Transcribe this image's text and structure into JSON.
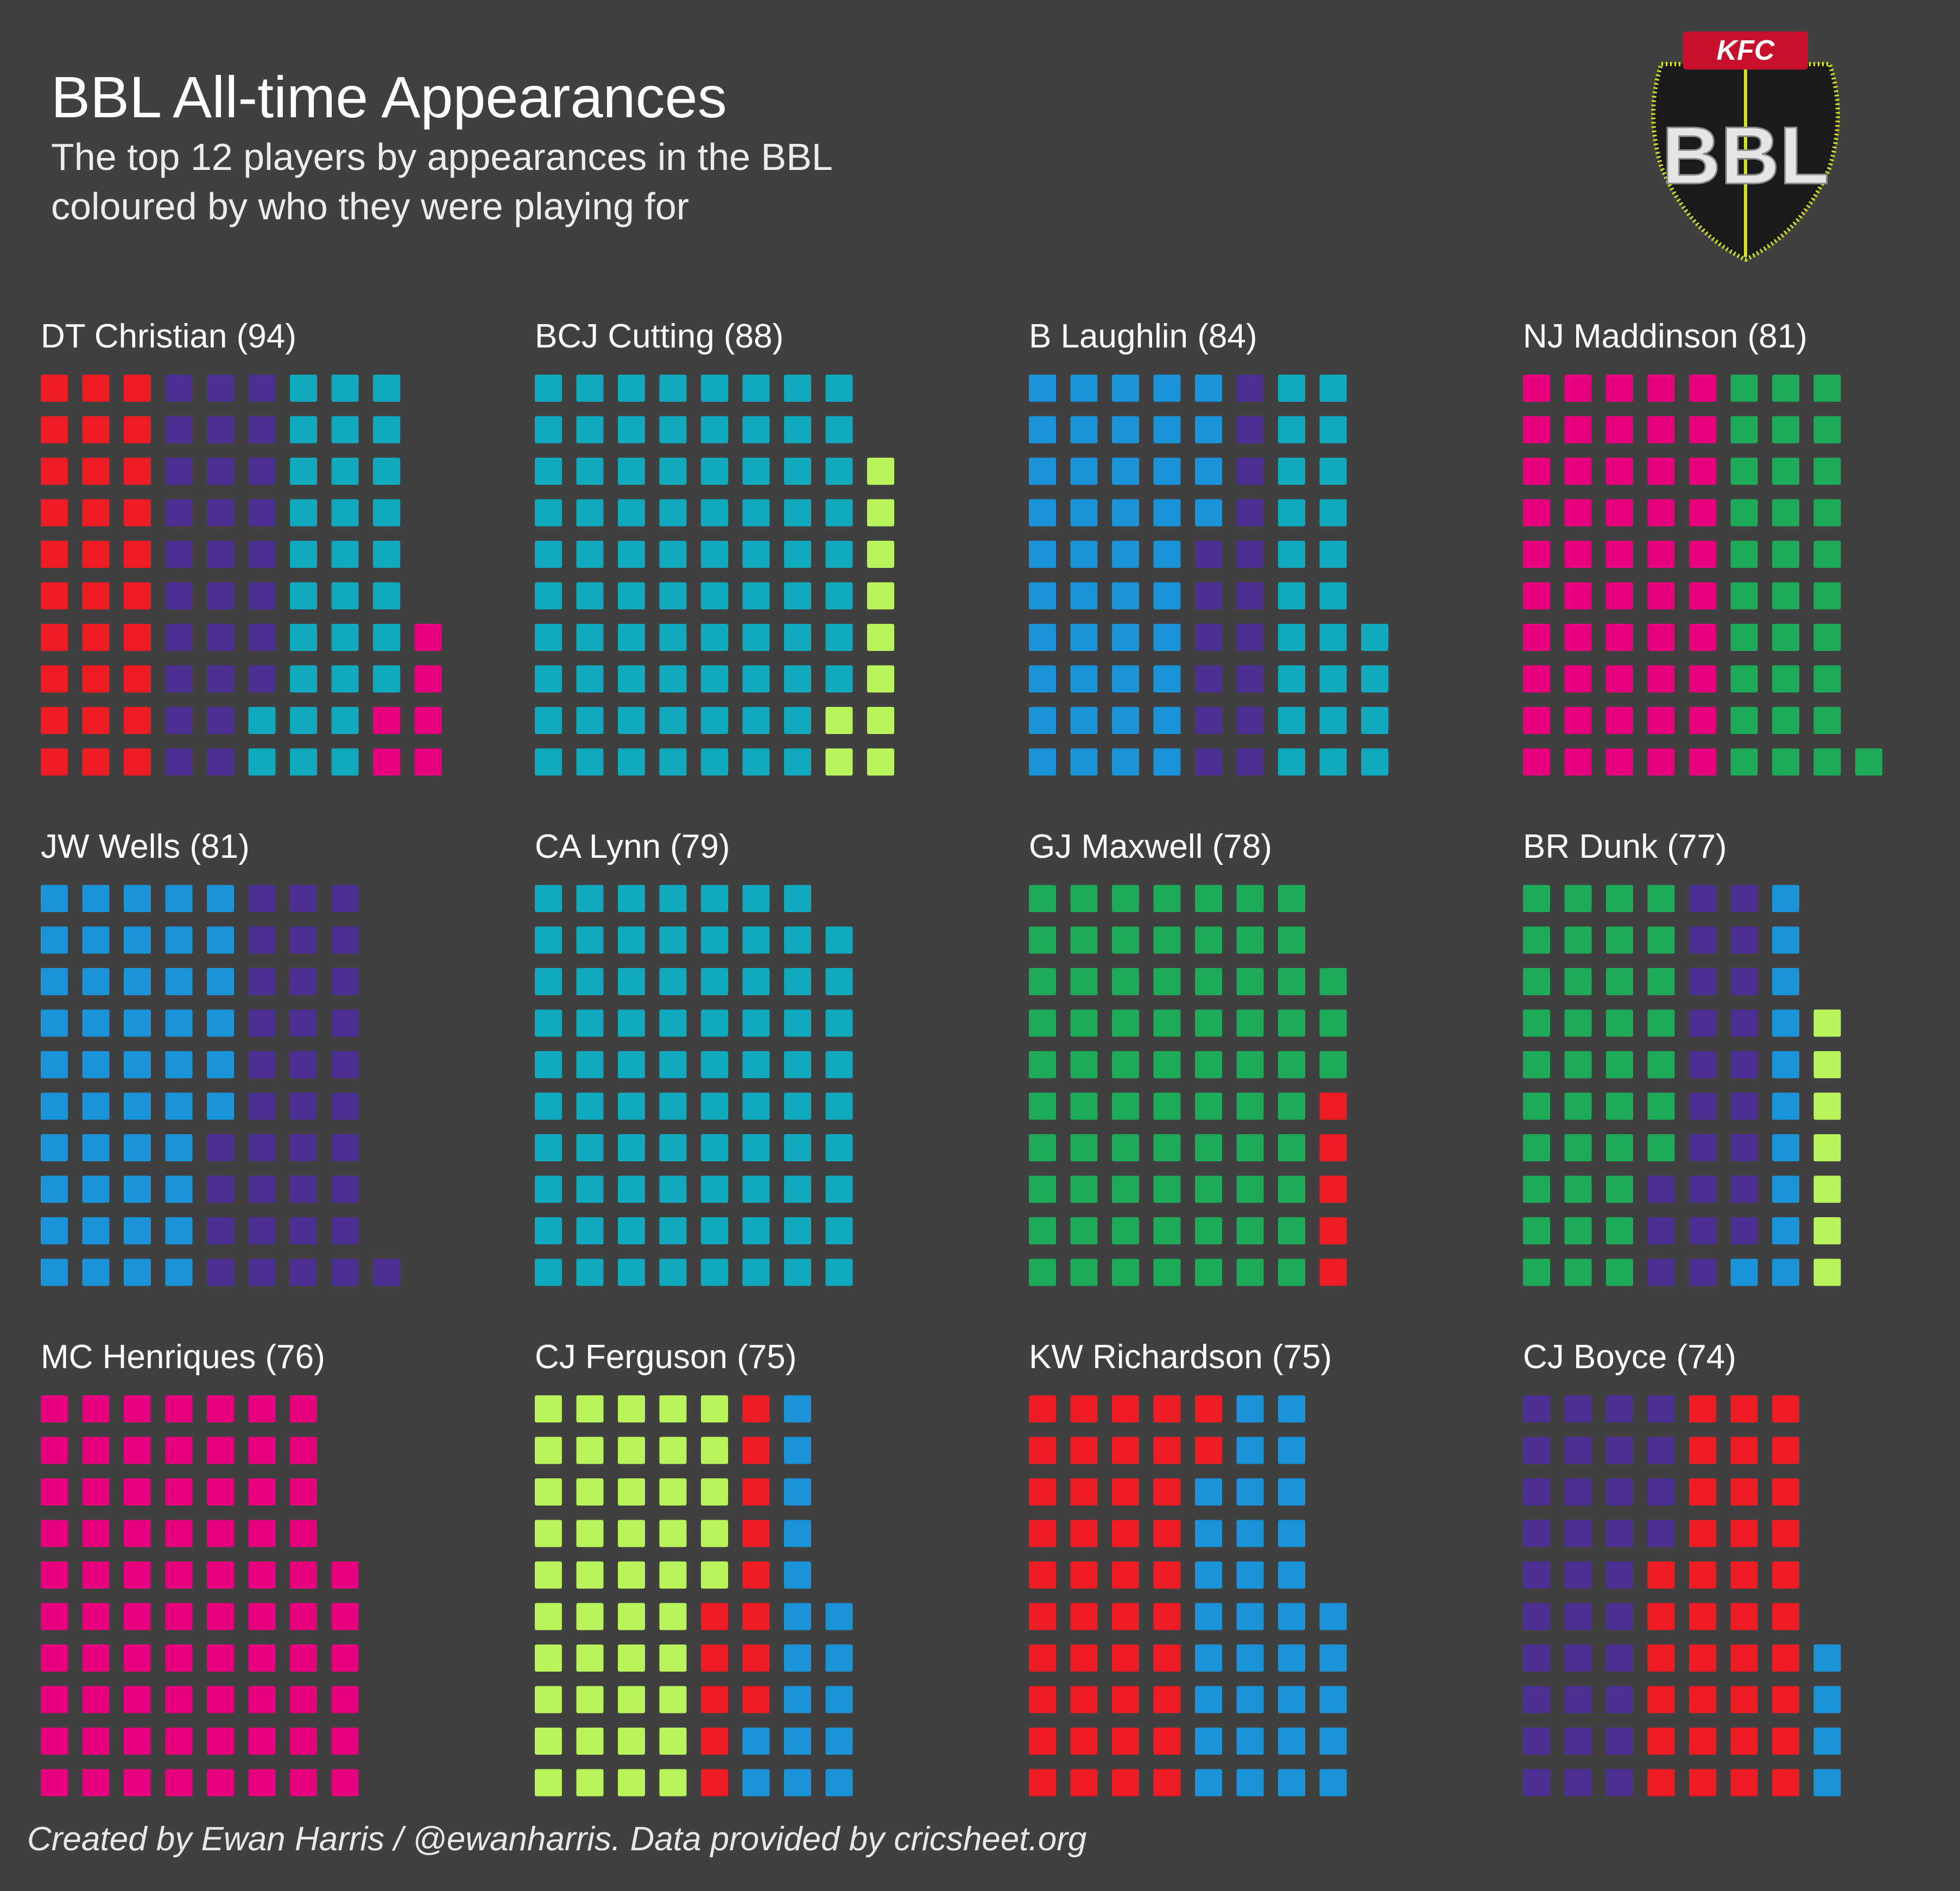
{
  "header": {
    "title": "BBL All-time Appearances",
    "subtitle": "The top 12 players by appearances in the BBL coloured by who they were playing for"
  },
  "logo": {
    "badge_text": "KFC",
    "main_text": "BBL"
  },
  "caption": "Created by Ewan Harris / @ewanharris. Data provided by cricsheet.org",
  "team_colors": {
    "red": "#ed1c24",
    "purple": "#4d2e91",
    "teal": "#11a9bd",
    "magenta": "#e6007e",
    "lime": "#b8f35a",
    "blue": "#1b93d9",
    "green": "#1eaa59"
  },
  "chart_data": {
    "type": "waffle",
    "unit": "one square = one appearance",
    "players": [
      {
        "name": "DT Christian",
        "label": "DT Christian (94)",
        "total": 94,
        "segments": [
          {
            "team": "red",
            "count": 30
          },
          {
            "team": "purple",
            "count": 28
          },
          {
            "team": "teal",
            "count": 30
          },
          {
            "team": "magenta",
            "count": 6
          }
        ]
      },
      {
        "name": "BCJ Cutting",
        "label": "BCJ Cutting (88)",
        "total": 88,
        "segments": [
          {
            "team": "teal",
            "count": 78
          },
          {
            "team": "lime",
            "count": 10
          }
        ]
      },
      {
        "name": "B Laughlin",
        "label": "B Laughlin (84)",
        "total": 84,
        "segments": [
          {
            "team": "blue",
            "count": 44
          },
          {
            "team": "purple",
            "count": 16
          },
          {
            "team": "teal",
            "count": 24
          }
        ]
      },
      {
        "name": "NJ Maddinson",
        "label": "NJ Maddinson (81)",
        "total": 81,
        "segments": [
          {
            "team": "magenta",
            "count": 50
          },
          {
            "team": "green",
            "count": 31
          }
        ]
      },
      {
        "name": "JW Wells",
        "label": "JW Wells (81)",
        "total": 81,
        "segments": [
          {
            "team": "blue",
            "count": 46
          },
          {
            "team": "purple",
            "count": 35
          }
        ]
      },
      {
        "name": "CA Lynn",
        "label": "CA Lynn (79)",
        "total": 79,
        "segments": [
          {
            "team": "teal",
            "count": 79
          }
        ]
      },
      {
        "name": "GJ Maxwell",
        "label": "GJ Maxwell (78)",
        "total": 78,
        "segments": [
          {
            "team": "green",
            "count": 73
          },
          {
            "team": "red",
            "count": 5
          }
        ]
      },
      {
        "name": "BR Dunk",
        "label": "BR Dunk (77)",
        "total": 77,
        "segments": [
          {
            "team": "green",
            "count": 37
          },
          {
            "team": "purple",
            "count": 22
          },
          {
            "team": "blue",
            "count": 11
          },
          {
            "team": "lime",
            "count": 7
          }
        ]
      },
      {
        "name": "MC Henriques",
        "label": "MC Henriques (76)",
        "total": 76,
        "segments": [
          {
            "team": "magenta",
            "count": 76
          }
        ]
      },
      {
        "name": "CJ Ferguson",
        "label": "CJ Ferguson (75)",
        "total": 75,
        "segments": [
          {
            "team": "lime",
            "count": 45
          },
          {
            "team": "red",
            "count": 13
          },
          {
            "team": "blue",
            "count": 17
          }
        ]
      },
      {
        "name": "KW Richardson",
        "label": "KW Richardson (75)",
        "total": 75,
        "segments": [
          {
            "team": "red",
            "count": 42
          },
          {
            "team": "blue",
            "count": 33
          }
        ]
      },
      {
        "name": "CJ Boyce",
        "label": "CJ Boyce (74)",
        "total": 74,
        "segments": [
          {
            "team": "purple",
            "count": 34
          },
          {
            "team": "red",
            "count": 36
          },
          {
            "team": "blue",
            "count": 4
          }
        ]
      }
    ]
  }
}
